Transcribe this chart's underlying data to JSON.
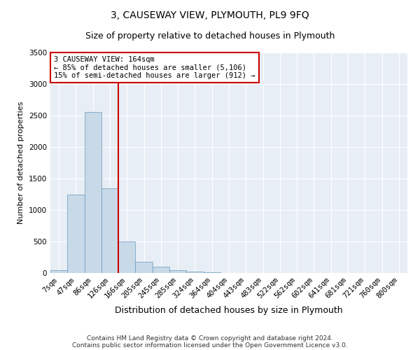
{
  "title": "3, CAUSEWAY VIEW, PLYMOUTH, PL9 9FQ",
  "subtitle": "Size of property relative to detached houses in Plymouth",
  "xlabel": "Distribution of detached houses by size in Plymouth",
  "ylabel": "Number of detached properties",
  "categories": [
    "7sqm",
    "47sqm",
    "86sqm",
    "126sqm",
    "166sqm",
    "205sqm",
    "245sqm",
    "285sqm",
    "324sqm",
    "364sqm",
    "404sqm",
    "443sqm",
    "483sqm",
    "522sqm",
    "562sqm",
    "602sqm",
    "641sqm",
    "681sqm",
    "721sqm",
    "760sqm",
    "800sqm"
  ],
  "values": [
    50,
    1250,
    2550,
    1350,
    500,
    175,
    100,
    50,
    25,
    10,
    5,
    2,
    1,
    0,
    0,
    0,
    0,
    0,
    0,
    0,
    0
  ],
  "bar_color": "#c8d9e8",
  "bar_edge_color": "#6699bb",
  "red_line_x": 3.5,
  "annotation_line1": "3 CAUSEWAY VIEW: 164sqm",
  "annotation_line2": "← 85% of detached houses are smaller (5,106)",
  "annotation_line3": "15% of semi-detached houses are larger (912) →",
  "annotation_box_color": "#ffffff",
  "annotation_box_edge": "#cc0000",
  "red_line_color": "#cc0000",
  "ylim": [
    0,
    3500
  ],
  "yticks": [
    0,
    500,
    1000,
    1500,
    2000,
    2500,
    3000,
    3500
  ],
  "background_color": "#e8eef5",
  "footer_line1": "Contains HM Land Registry data © Crown copyright and database right 2024.",
  "footer_line2": "Contains public sector information licensed under the Open Government Licence v3.0.",
  "title_fontsize": 10,
  "subtitle_fontsize": 9,
  "xlabel_fontsize": 9,
  "ylabel_fontsize": 8,
  "tick_fontsize": 7.5,
  "footer_fontsize": 6.5
}
